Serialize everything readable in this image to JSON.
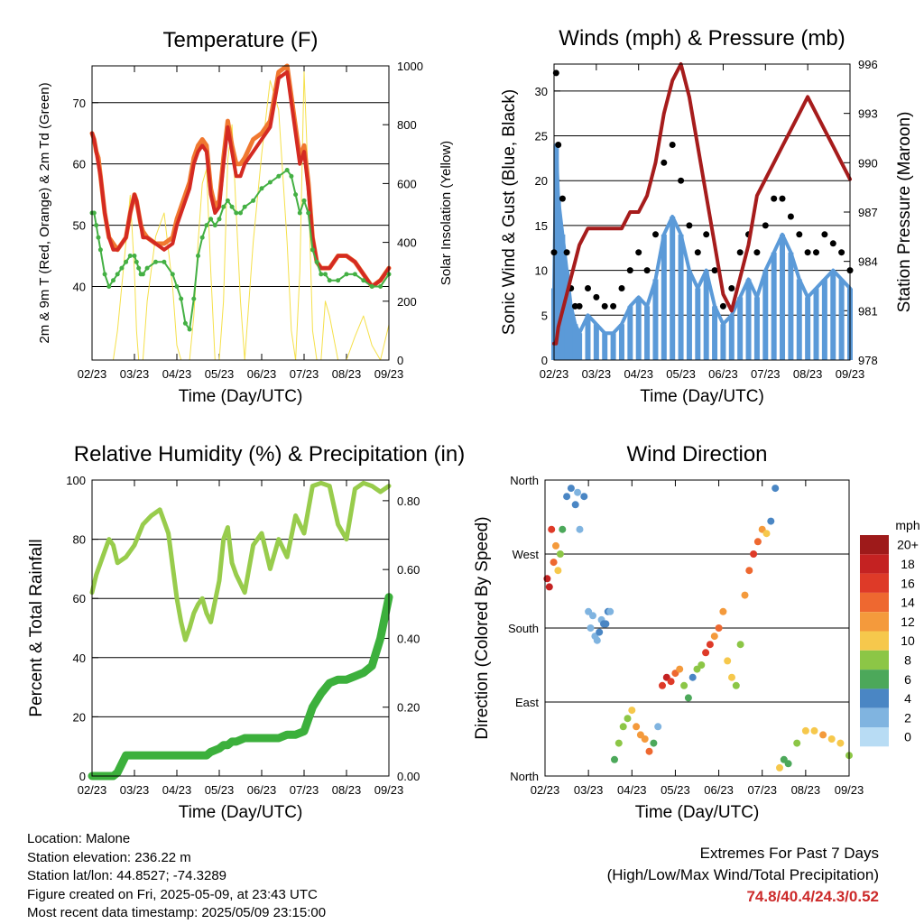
{
  "x_tick_labels": [
    "02/23",
    "03/23",
    "04/23",
    "05/23",
    "06/23",
    "07/23",
    "08/23",
    "09/23"
  ],
  "colors": {
    "temp_2m": "#d42a22",
    "temp_9m": "#f07830",
    "dewpoint": "#44b044",
    "solar": "#f5e04a",
    "sonic_wind": "#5b9ad8",
    "gust": "#000000",
    "pressure": "#a61c1c",
    "rh": "#98cc4c",
    "precip": "#3cb03c",
    "gridline": "#000000"
  },
  "chart_data": [
    {
      "type": "line",
      "title": "Temperature (F)",
      "xlabel": "Time (Day/UTC)",
      "ylabel": "2m & 9m T (Red, Orange) & 2m Td (Green)",
      "ylabel_right": "Solar Insolation (Yellow)",
      "ylim": [
        28,
        76
      ],
      "y_ticks": [
        40,
        50,
        60,
        70
      ],
      "ylim_right": [
        0,
        1000
      ],
      "y_ticks_right": [
        0,
        200,
        400,
        600,
        800,
        1000
      ],
      "grid": true,
      "x": [
        0,
        0.05,
        0.1,
        0.15,
        0.2,
        0.3,
        0.4,
        0.5,
        0.6,
        0.7,
        0.8,
        0.9,
        1.0,
        1.05,
        1.1,
        1.15,
        1.2,
        1.3,
        1.5,
        1.7,
        1.9,
        2.0,
        2.1,
        2.2,
        2.3,
        2.4,
        2.5,
        2.6,
        2.7,
        2.8,
        2.9,
        3.0,
        3.1,
        3.2,
        3.3,
        3.4,
        3.5,
        3.6,
        3.8,
        4.0,
        4.2,
        4.4,
        4.6,
        4.7,
        4.8,
        4.9,
        5.0,
        5.1,
        5.2,
        5.3,
        5.4,
        5.5,
        5.6,
        5.8,
        6.0,
        6.2,
        6.4,
        6.6,
        6.8,
        7.0
      ],
      "series": [
        {
          "name": "Red",
          "values": [
            65,
            64,
            62,
            60,
            58,
            52,
            48,
            46,
            46,
            47,
            48,
            52,
            55,
            54,
            52,
            50,
            48,
            48,
            47,
            46,
            47,
            50,
            52,
            54,
            56,
            60,
            62,
            63,
            62,
            55,
            52,
            53,
            60,
            66,
            62,
            58,
            58,
            60,
            62,
            64,
            66,
            74,
            75,
            70,
            65,
            60,
            62,
            56,
            48,
            44,
            43,
            43,
            43,
            45,
            45,
            44,
            42,
            40,
            41,
            43
          ]
        },
        {
          "name": "Orange",
          "values": [
            65,
            64,
            62,
            61,
            58,
            52,
            48,
            47,
            46,
            47,
            48,
            52,
            55,
            54,
            52,
            50,
            49,
            48,
            47,
            47,
            48,
            51,
            53,
            55,
            57,
            61,
            63,
            64,
            63,
            56,
            53,
            54,
            61,
            67,
            63,
            60,
            60,
            61,
            64,
            65,
            67,
            75,
            76,
            71,
            66,
            61,
            63,
            57,
            48,
            44,
            43,
            43,
            43,
            45,
            45,
            44,
            42,
            40,
            41,
            43
          ]
        },
        {
          "name": "Green",
          "values": [
            52,
            52,
            50,
            48,
            46,
            42,
            40,
            41,
            42,
            43,
            44,
            45,
            45,
            44,
            43,
            42,
            42,
            43,
            44,
            44,
            42,
            40,
            38,
            34,
            33,
            38,
            45,
            48,
            50,
            51,
            50,
            51,
            53,
            54,
            53,
            52,
            52,
            53,
            54,
            56,
            57,
            58,
            59,
            58,
            55,
            52,
            54,
            52,
            46,
            44,
            42,
            42,
            41,
            41,
            42,
            42,
            41,
            40,
            40,
            42
          ]
        },
        {
          "name": "Yellow",
          "values": [
            0,
            0,
            0,
            0,
            0,
            0,
            0,
            0,
            100,
            250,
            400,
            560,
            300,
            100,
            0,
            0,
            0,
            200,
            420,
            500,
            250,
            50,
            0,
            0,
            0,
            150,
            400,
            600,
            650,
            300,
            0,
            0,
            200,
            680,
            800,
            500,
            200,
            0,
            400,
            700,
            950,
            850,
            400,
            100,
            0,
            300,
            980,
            600,
            100,
            0,
            0,
            200,
            150,
            0,
            0,
            80,
            150,
            50,
            0,
            120
          ]
        }
      ]
    },
    {
      "type": "line",
      "title": "Winds (mph) & Pressure (mb)",
      "xlabel": "Time (Day/UTC)",
      "ylabel": "Sonic Wind & Gust (Blue, Black)",
      "ylabel_right": "Station Pressure (Maroon)",
      "ylim": [
        0,
        33
      ],
      "y_ticks": [
        0,
        5,
        10,
        15,
        20,
        25,
        30
      ],
      "ylim_right": [
        978,
        996
      ],
      "y_ticks_right": [
        978,
        981,
        984,
        987,
        990,
        993,
        996
      ],
      "grid": true,
      "x": [
        0,
        0.05,
        0.1,
        0.2,
        0.3,
        0.4,
        0.5,
        0.6,
        0.8,
        1.0,
        1.2,
        1.4,
        1.6,
        1.8,
        2.0,
        2.2,
        2.4,
        2.6,
        2.8,
        3.0,
        3.2,
        3.4,
        3.6,
        3.8,
        4.0,
        4.2,
        4.4,
        4.6,
        4.8,
        5.0,
        5.2,
        5.4,
        5.6,
        5.8,
        6.0,
        6.2,
        6.4,
        6.6,
        6.8,
        7.0
      ],
      "series": [
        {
          "name": "Blue",
          "values": [
            8,
            24,
            18,
            14,
            10,
            6,
            4,
            3,
            5,
            4,
            3,
            3,
            4,
            6,
            7,
            6,
            9,
            14,
            16,
            14,
            10,
            8,
            10,
            6,
            4,
            5,
            7,
            9,
            7,
            10,
            12,
            14,
            12,
            9,
            7,
            8,
            9,
            10,
            9,
            8
          ]
        },
        {
          "name": "Black",
          "values": [
            12,
            32,
            24,
            18,
            12,
            8,
            6,
            6,
            8,
            7,
            6,
            6,
            8,
            10,
            12,
            10,
            14,
            22,
            24,
            20,
            15,
            12,
            14,
            10,
            6,
            8,
            12,
            14,
            12,
            15,
            18,
            18,
            16,
            14,
            12,
            12,
            14,
            13,
            12,
            10
          ]
        },
        {
          "name": "Maroon",
          "values": [
            979,
            979,
            980,
            981,
            982,
            983,
            984,
            985,
            986,
            986,
            986,
            986,
            986,
            987,
            987,
            988,
            990,
            993,
            995,
            996,
            994,
            991,
            988,
            985,
            982,
            981,
            983,
            985,
            988,
            989,
            990,
            991,
            992,
            993,
            994,
            993,
            992,
            991,
            990,
            989
          ]
        }
      ]
    },
    {
      "type": "line",
      "title": "Relative Humidity (%) & Precipitation (in)",
      "xlabel": "Time (Day/UTC)",
      "ylabel": "Percent & Total Rainfall",
      "ylim": [
        0,
        100
      ],
      "y_ticks": [
        0,
        20,
        40,
        60,
        80,
        100
      ],
      "ylim_right": [
        0,
        0.86
      ],
      "y_ticks_right": [
        0.0,
        0.2,
        0.4,
        0.6,
        0.8
      ],
      "grid": true,
      "x": [
        0,
        0.1,
        0.2,
        0.3,
        0.4,
        0.5,
        0.6,
        0.8,
        1.0,
        1.2,
        1.4,
        1.6,
        1.8,
        2.0,
        2.1,
        2.2,
        2.3,
        2.4,
        2.5,
        2.6,
        2.7,
        2.8,
        3.0,
        3.1,
        3.2,
        3.3,
        3.4,
        3.6,
        3.8,
        4.0,
        4.2,
        4.4,
        4.6,
        4.8,
        5.0,
        5.2,
        5.4,
        5.6,
        5.8,
        6.0,
        6.2,
        6.4,
        6.6,
        6.8,
        7.0
      ],
      "series": [
        {
          "name": "Humidity",
          "values": [
            62,
            68,
            72,
            76,
            80,
            78,
            72,
            74,
            78,
            85,
            88,
            90,
            82,
            60,
            52,
            46,
            50,
            55,
            58,
            60,
            55,
            52,
            66,
            80,
            84,
            72,
            68,
            62,
            78,
            82,
            70,
            80,
            74,
            88,
            82,
            98,
            99,
            98,
            85,
            80,
            97,
            99,
            98,
            96,
            98
          ]
        },
        {
          "name": "Precipitation",
          "values": [
            0,
            0,
            0,
            0,
            0,
            0,
            0.01,
            0.06,
            0.06,
            0.06,
            0.06,
            0.06,
            0.06,
            0.06,
            0.06,
            0.06,
            0.06,
            0.06,
            0.06,
            0.06,
            0.06,
            0.07,
            0.08,
            0.09,
            0.09,
            0.1,
            0.1,
            0.11,
            0.11,
            0.11,
            0.11,
            0.11,
            0.12,
            0.12,
            0.13,
            0.2,
            0.24,
            0.27,
            0.28,
            0.28,
            0.29,
            0.3,
            0.32,
            0.4,
            0.52
          ]
        }
      ]
    },
    {
      "type": "scatter",
      "title": "Wind Direction",
      "xlabel": "Time (Day/UTC)",
      "ylabel": "Direction (Colored By Speed)",
      "ylim": [
        0,
        360
      ],
      "y_tick_values": [
        0,
        90,
        180,
        270,
        360
      ],
      "y_tick_labels": [
        "North",
        "East",
        "South",
        "West",
        "North"
      ],
      "grid": true,
      "colorbar_title": "mph",
      "colorbar_labels": [
        "20+",
        "18",
        "16",
        "14",
        "12",
        "10",
        "8",
        "6",
        "4",
        "2",
        "0"
      ],
      "colorbar_colors": [
        "#9e1a1a",
        "#c42222",
        "#de3a28",
        "#ee6830",
        "#f49a3c",
        "#f6c84c",
        "#8cc646",
        "#4ca85a",
        "#4a86c4",
        "#80b4e0",
        "#b8dcf4"
      ],
      "x": [
        0.05,
        0.1,
        0.15,
        0.2,
        0.25,
        0.3,
        0.35,
        0.4,
        0.5,
        0.6,
        0.7,
        0.75,
        0.8,
        0.9,
        1.0,
        1.05,
        1.1,
        1.15,
        1.2,
        1.25,
        1.3,
        1.35,
        1.4,
        1.45,
        1.5,
        1.6,
        1.7,
        1.8,
        1.9,
        2.0,
        2.1,
        2.2,
        2.3,
        2.4,
        2.5,
        2.6,
        2.7,
        2.8,
        2.9,
        3.0,
        3.1,
        3.2,
        3.3,
        3.4,
        3.5,
        3.6,
        3.7,
        3.8,
        3.9,
        4.0,
        4.1,
        4.2,
        4.3,
        4.4,
        4.5,
        4.6,
        4.7,
        4.8,
        4.9,
        5.0,
        5.1,
        5.2,
        5.3,
        5.4,
        5.5,
        5.6,
        5.8,
        6.0,
        6.2,
        6.4,
        6.6,
        6.8,
        7.0
      ],
      "y": [
        240,
        230,
        300,
        260,
        280,
        250,
        270,
        300,
        340,
        350,
        330,
        345,
        300,
        340,
        200,
        180,
        195,
        170,
        165,
        175,
        190,
        185,
        185,
        200,
        200,
        20,
        40,
        60,
        70,
        80,
        60,
        50,
        45,
        30,
        40,
        60,
        110,
        120,
        115,
        125,
        130,
        110,
        95,
        120,
        130,
        135,
        150,
        160,
        170,
        180,
        200,
        140,
        120,
        110,
        160,
        220,
        250,
        270,
        285,
        300,
        295,
        310,
        350,
        10,
        20,
        15,
        40,
        55,
        55,
        50,
        45,
        40,
        25
      ],
      "values": [
        18,
        17,
        16,
        13,
        11,
        10,
        8,
        6,
        4,
        4,
        3,
        2,
        1,
        3,
        2,
        1,
        2,
        2,
        1,
        3,
        2,
        3,
        3,
        3,
        2,
        6,
        7,
        8,
        8,
        9,
        12,
        11,
        11,
        13,
        5,
        2,
        15,
        17,
        16,
        14,
        12,
        7,
        5,
        4,
        7,
        8,
        16,
        15,
        12,
        13,
        12,
        10,
        9,
        8,
        8,
        12,
        14,
        15,
        13,
        12,
        9,
        4,
        3,
        9,
        6,
        5,
        8,
        10,
        9,
        12,
        10,
        9,
        8
      ]
    }
  ],
  "info": {
    "location": "Location: Malone",
    "elevation": "Station elevation: 236.22 m",
    "latlon": "Station lat/lon: 44.8527; -74.3289",
    "created": "Figure created on Fri, 2025-05-09, at 23:43 UTC",
    "recent": "Most recent data timestamp: 2025/05/09 23:15:00"
  },
  "extremes": {
    "title": "Extremes For Past 7 Days",
    "subtitle": "(High/Low/Max Wind/Total Precipitation)",
    "values": "74.8/40.4/24.3/0.52"
  }
}
